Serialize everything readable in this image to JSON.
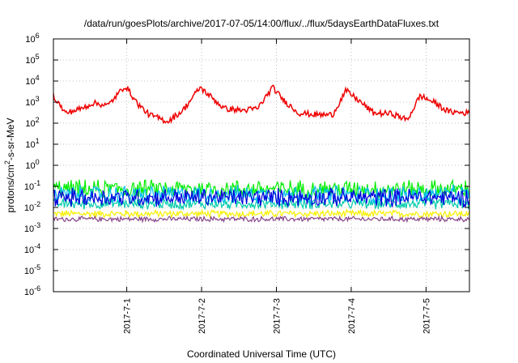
{
  "chart_data": {
    "type": "line",
    "title": "/data/run/goesPlots/archive/2017-07-05/14:00/flux/../flux/5daysEarthDataFluxes.txt",
    "xlabel": "Coordinated Universal Time (UTC)",
    "ylabel_prefix": "protons/cm",
    "ylabel_sup": "2",
    "ylabel_suffix": "-s-sr-MeV",
    "yscale": "log",
    "ylim": [
      1e-06,
      1000000.0
    ],
    "xlim": [
      -0.98,
      4.58
    ],
    "grid": true,
    "x_ticks": [
      {
        "x": 0,
        "label": "2017-7-1"
      },
      {
        "x": 1,
        "label": "2017-7-2"
      },
      {
        "x": 2,
        "label": "2017-7-3"
      },
      {
        "x": 3,
        "label": "2017-7-4"
      },
      {
        "x": 4,
        "label": "2017-7-5"
      }
    ],
    "y_ticks": [
      {
        "exp": 6,
        "base": "10",
        "sup": "6"
      },
      {
        "exp": 5,
        "base": "10",
        "sup": "5"
      },
      {
        "exp": 4,
        "base": "10",
        "sup": "4"
      },
      {
        "exp": 3,
        "base": "10",
        "sup": "3"
      },
      {
        "exp": 2,
        "base": "10",
        "sup": "2"
      },
      {
        "exp": 1,
        "base": "10",
        "sup": "1"
      },
      {
        "exp": 0,
        "base": "10",
        "sup": "0"
      },
      {
        "exp": -1,
        "base": "10",
        "sup": "-1"
      },
      {
        "exp": -2,
        "base": "10",
        "sup": "-2"
      },
      {
        "exp": -3,
        "base": "10",
        "sup": "-3"
      },
      {
        "exp": -4,
        "base": "10",
        "sup": "-4"
      },
      {
        "exp": -5,
        "base": "10",
        "sup": "-5"
      },
      {
        "exp": -6,
        "base": "10",
        "sup": "-6"
      }
    ],
    "series": [
      {
        "color": "#f6f000",
        "base": 0.005,
        "noise": 0.1
      },
      {
        "color": "#884488",
        "base": 0.0028,
        "noise": 0.07
      },
      {
        "color": "#00ccaa",
        "base": 0.015,
        "noise": 0.15
      },
      {
        "color": "#00ee00",
        "base": 0.075,
        "noise": 0.25
      },
      {
        "color": "#00bbee",
        "base": 0.04,
        "noise": 0.25
      },
      {
        "color": "#0000dd",
        "base": 0.03,
        "noise": 0.25
      },
      {
        "color": "#ee0000",
        "peaks": [
          {
            "x": -0.98,
            "y": 2000
          },
          {
            "x": -0.82,
            "y": 300
          },
          {
            "x": -0.6,
            "y": 500
          },
          {
            "x": -0.45,
            "y": 900
          },
          {
            "x": -0.25,
            "y": 700
          },
          {
            "x": -0.02,
            "y": 6000
          },
          {
            "x": 0.15,
            "y": 800
          },
          {
            "x": 0.3,
            "y": 250
          },
          {
            "x": 0.55,
            "y": 120
          },
          {
            "x": 0.75,
            "y": 400
          },
          {
            "x": 0.98,
            "y": 5000
          },
          {
            "x": 1.15,
            "y": 1500
          },
          {
            "x": 1.3,
            "y": 500
          },
          {
            "x": 1.55,
            "y": 400
          },
          {
            "x": 1.75,
            "y": 500
          },
          {
            "x": 1.95,
            "y": 5000
          },
          {
            "x": 2.1,
            "y": 1200
          },
          {
            "x": 2.3,
            "y": 300
          },
          {
            "x": 2.55,
            "y": 250
          },
          {
            "x": 2.75,
            "y": 250
          },
          {
            "x": 2.93,
            "y": 3500
          },
          {
            "x": 3.1,
            "y": 1200
          },
          {
            "x": 3.3,
            "y": 300
          },
          {
            "x": 3.55,
            "y": 280
          },
          {
            "x": 3.75,
            "y": 140
          },
          {
            "x": 3.92,
            "y": 2000
          },
          {
            "x": 4.1,
            "y": 1000
          },
          {
            "x": 4.3,
            "y": 350
          },
          {
            "x": 4.58,
            "y": 300
          }
        ]
      }
    ]
  }
}
